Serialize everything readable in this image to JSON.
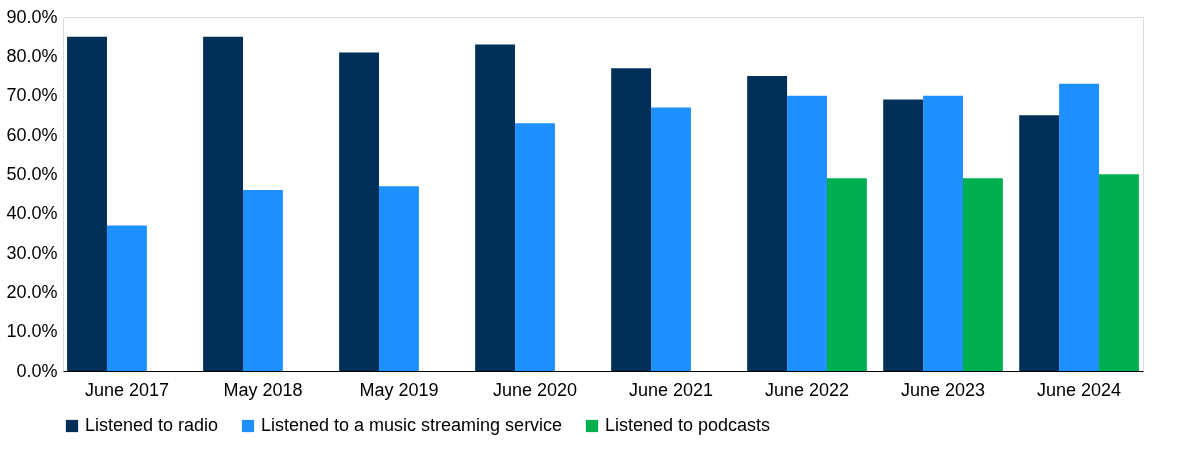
{
  "chart_data": {
    "type": "bar",
    "categories": [
      "June 2017",
      "May 2018",
      "May 2019",
      "June 2020",
      "June 2021",
      "June 2022",
      "June 2023",
      "June 2024"
    ],
    "series": [
      {
        "name": "Listened to radio",
        "color": "#003057",
        "values": [
          85,
          85,
          81,
          83,
          77,
          75,
          69,
          65
        ]
      },
      {
        "name": "Listened to a music streaming service",
        "color": "#1e90ff",
        "values": [
          37,
          46,
          47,
          63,
          67,
          70,
          70,
          73
        ]
      },
      {
        "name": "Listened to podcasts",
        "color": "#00b050",
        "values": [
          null,
          null,
          null,
          null,
          null,
          49,
          49,
          50
        ]
      }
    ],
    "ylim": [
      0,
      90
    ],
    "yticks": [
      {
        "value": 0,
        "label": "0.0%"
      },
      {
        "value": 10,
        "label": "10.0%"
      },
      {
        "value": 20,
        "label": "20.0%"
      },
      {
        "value": 30,
        "label": "30.0%"
      },
      {
        "value": 40,
        "label": "40.0%"
      },
      {
        "value": 50,
        "label": "50.0%"
      },
      {
        "value": 60,
        "label": "60.0%"
      },
      {
        "value": 70,
        "label": "70.0%"
      },
      {
        "value": 80,
        "label": "80.0%"
      },
      {
        "value": 90,
        "label": "90.0%"
      }
    ],
    "grid": false,
    "legend": "bottom"
  }
}
